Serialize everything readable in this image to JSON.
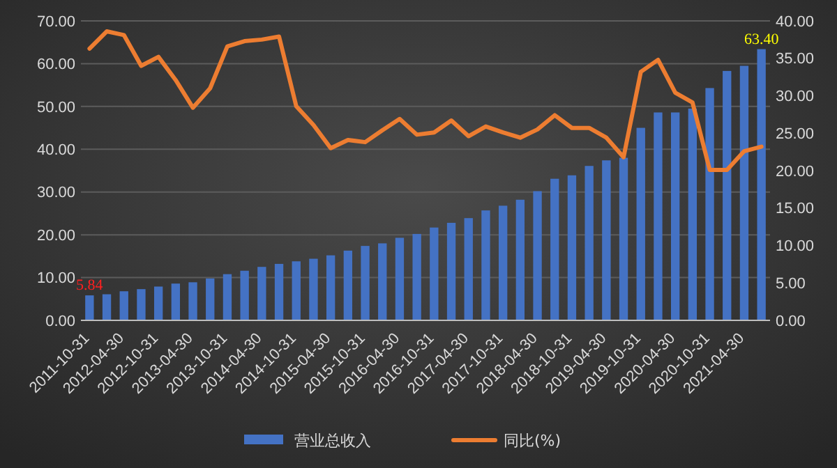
{
  "chart_data": {
    "type": "bar",
    "categories": [
      "2011-10-31",
      null,
      "2012-04-30",
      null,
      "2012-10-31",
      null,
      "2013-04-30",
      null,
      "2013-10-31",
      null,
      "2014-04-30",
      null,
      "2014-10-31",
      null,
      "2015-04-30",
      null,
      "2015-10-31",
      null,
      "2016-04-30",
      null,
      "2016-10-31",
      null,
      "2017-04-30",
      null,
      "2017-10-31",
      null,
      "2018-04-30",
      null,
      "2018-10-31",
      null,
      "2019-04-30",
      null,
      "2019-10-31",
      null,
      "2020-04-30",
      null,
      "2020-10-31",
      null,
      "2021-04-30",
      null
    ],
    "series": [
      {
        "name": "营业总收入",
        "color": "#4472c4",
        "values": [
          5.84,
          6.1,
          6.8,
          7.3,
          7.9,
          8.6,
          8.9,
          9.8,
          10.8,
          11.6,
          12.5,
          13.2,
          13.8,
          14.4,
          15.2,
          16.3,
          17.4,
          18.0,
          19.3,
          20.2,
          21.7,
          22.8,
          23.9,
          25.7,
          26.8,
          28.2,
          30.2,
          33.1,
          33.9,
          36.1,
          37.4,
          38.0,
          45.0,
          48.6,
          48.6,
          49.5,
          54.3,
          58.3,
          59.5,
          63.4
        ],
        "value_labels": [
          "5.84",
          null,
          null,
          null,
          null,
          null,
          null,
          null,
          null,
          null,
          null,
          null,
          null,
          null,
          null,
          null,
          null,
          null,
          null,
          null,
          null,
          null,
          null,
          null,
          null,
          null,
          null,
          null,
          null,
          null,
          null,
          null,
          null,
          null,
          null,
          null,
          null,
          null,
          null,
          "63.40"
        ]
      },
      {
        "name": "同比(%)",
        "type": "line",
        "axis": "y2",
        "color": "#ed7d31",
        "values": [
          36.3,
          38.6,
          38.1,
          34.0,
          35.2,
          32.1,
          28.4,
          31.0,
          36.6,
          37.3,
          37.5,
          37.9,
          28.6,
          26.1,
          23.0,
          24.1,
          23.8,
          25.4,
          26.9,
          24.8,
          25.1,
          26.7,
          24.6,
          25.9,
          25.1,
          24.4,
          25.5,
          27.4,
          25.7,
          25.7,
          24.4,
          21.8,
          33.2,
          34.8,
          30.4,
          29.1,
          20.1,
          20.1,
          22.6,
          23.2
        ]
      }
    ],
    "ylim": [
      0,
      70
    ],
    "yticks": [
      {
        "value": 0,
        "label": "0.00"
      },
      {
        "value": 10,
        "label": "10.00"
      },
      {
        "value": 20,
        "label": "20.00"
      },
      {
        "value": 30,
        "label": "30.00"
      },
      {
        "value": 40,
        "label": "40.00"
      },
      {
        "value": 50,
        "label": "50.00"
      },
      {
        "value": 60,
        "label": "60.00"
      },
      {
        "value": 70,
        "label": "70.00"
      }
    ],
    "y2lim": [
      0,
      40
    ],
    "y2ticks": [
      {
        "value": 0,
        "label": "0.00"
      },
      {
        "value": 5,
        "label": "5.00"
      },
      {
        "value": 10,
        "label": "10.00"
      },
      {
        "value": 15,
        "label": "15.00"
      },
      {
        "value": 20,
        "label": "20.00"
      },
      {
        "value": 25,
        "label": "25.00"
      },
      {
        "value": 30,
        "label": "30.00"
      },
      {
        "value": 35,
        "label": "35.00"
      },
      {
        "value": 40,
        "label": "40.00"
      }
    ],
    "grid": "y",
    "legend": "bottom",
    "marker": "none",
    "line_style": "solid"
  }
}
